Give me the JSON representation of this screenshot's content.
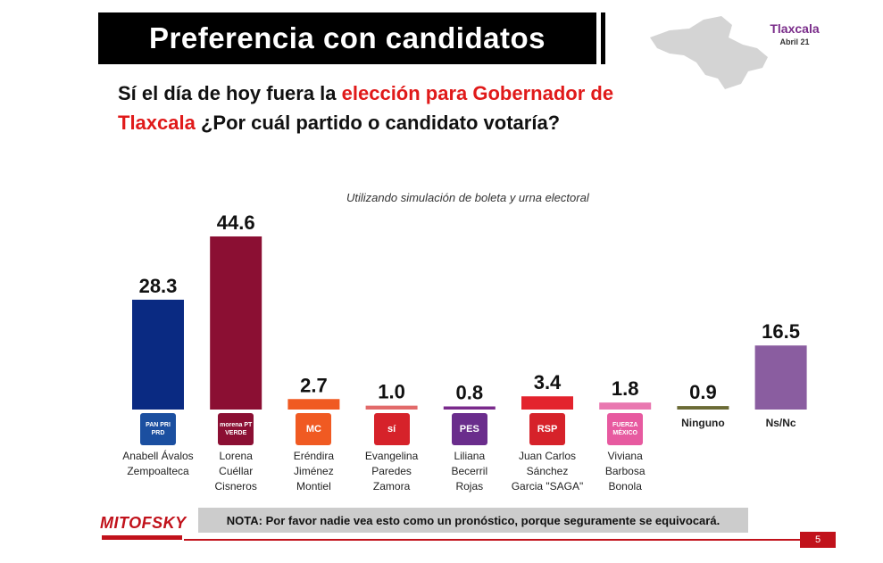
{
  "header": {
    "title": "Preferencia con candidatos",
    "region": "Tlaxcala",
    "date": "Abril 21"
  },
  "question": {
    "part1": "Sí el día de hoy fuera la ",
    "part2_red": "elección para Gobernador de Tlaxcala",
    "part3": " ¿Por cuál partido o candidato votaría?"
  },
  "subtitle": "Utilizando simulación de boleta y urna electoral",
  "chart_data": {
    "type": "bar",
    "title": "Preferencia con candidatos",
    "ylim": [
      0,
      50
    ],
    "categories": [
      "Anabell Ávalos Zempoalteca",
      "Lorena Cuéllar Cisneros",
      "Eréndira Jiménez Montiel",
      "Evangelina Paredes Zamora",
      "Liliana Becerril Rojas",
      "Juan Carlos Sánchez Garcia \"SAGA\"",
      "Viviana Barbosa Bonola",
      "Ninguno",
      "Ns/Nc"
    ],
    "values": [
      28.3,
      44.6,
      2.7,
      1.0,
      0.8,
      3.4,
      1.8,
      0.9,
      16.5
    ],
    "value_labels": [
      "28.3",
      "44.6",
      "2.7",
      "1.0",
      "0.8",
      "3.4",
      "1.8",
      "0.9",
      "16.5"
    ],
    "colors": [
      "#0a2a82",
      "#8b0f33",
      "#f05a22",
      "#e26a6a",
      "#7a2a8c",
      "#e3232d",
      "#e978b0",
      "#6b6b36",
      "#8a5da0"
    ]
  },
  "candidates": [
    {
      "lines": [
        "Anabell Ávalos",
        "Zempoalteca"
      ],
      "logo": "PAN PRI PRD",
      "logo_color": "#1b4fa0"
    },
    {
      "lines": [
        "Lorena",
        "Cuéllar",
        "Cisneros"
      ],
      "logo": "morena PT VERDE",
      "logo_color": "#8b0f33"
    },
    {
      "lines": [
        "Eréndira",
        "Jiménez",
        "Montiel"
      ],
      "logo": "MC",
      "logo_color": "#f05a22"
    },
    {
      "lines": [
        "Evangelina",
        "Paredes",
        "Zamora"
      ],
      "logo": "sí",
      "logo_color": "#d6222a"
    },
    {
      "lines": [
        "Liliana",
        "Becerril",
        "Rojas"
      ],
      "logo": "PES",
      "logo_color": "#6a2d8c"
    },
    {
      "lines": [
        "Juan Carlos",
        "Sánchez",
        "Garcia \"SAGA\""
      ],
      "logo": "RSP",
      "logo_color": "#d6222a"
    },
    {
      "lines": [
        "Viviana",
        "Barbosa",
        "Bonola"
      ],
      "logo": "FUERZA MÉXICO",
      "logo_color": "#e75aa0"
    },
    {
      "lines": [
        "Ninguno"
      ],
      "bold": true
    },
    {
      "lines": [
        "Ns/Nc"
      ],
      "bold": true
    }
  ],
  "note": "NOTA: Por favor nadie vea esto como un pronóstico, porque seguramente se equivocará.",
  "brand": "MITOFSKY",
  "page_number": "5"
}
